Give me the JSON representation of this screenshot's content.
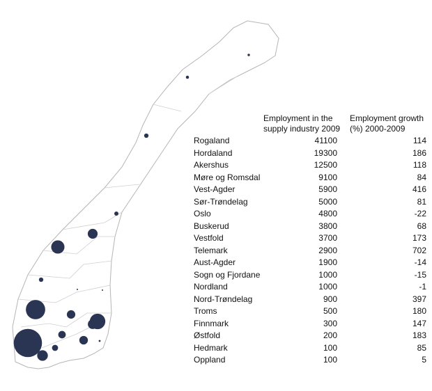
{
  "table": {
    "headers": [
      "Employment in the supply industry 2009",
      "Employment growth (%) 2000-2009"
    ],
    "rows": [
      [
        "Rogaland",
        41100,
        114
      ],
      [
        "Hordaland",
        19300,
        186
      ],
      [
        "Akershus",
        12500,
        118
      ],
      [
        "Møre og Romsdal",
        9100,
        84
      ],
      [
        "Vest-Agder",
        5900,
        416
      ],
      [
        "Sør-Trøndelag",
        5000,
        81
      ],
      [
        "Oslo",
        4800,
        -22
      ],
      [
        "Buskerud",
        3800,
        68
      ],
      [
        "Vestfold",
        3700,
        173
      ],
      [
        "Telemark",
        2900,
        702
      ],
      [
        "Aust-Agder",
        1900,
        -14
      ],
      [
        "Sogn og Fjordane",
        1000,
        -15
      ],
      [
        "Nordland",
        1000,
        -1
      ],
      [
        "Nord-Trøndelag",
        900,
        397
      ],
      [
        "Troms",
        500,
        180
      ],
      [
        "Finnmark",
        300,
        147
      ],
      [
        "Østfold",
        200,
        183
      ],
      [
        "Hedmark",
        100,
        85
      ],
      [
        "Oppland",
        100,
        5
      ]
    ]
  }
}
